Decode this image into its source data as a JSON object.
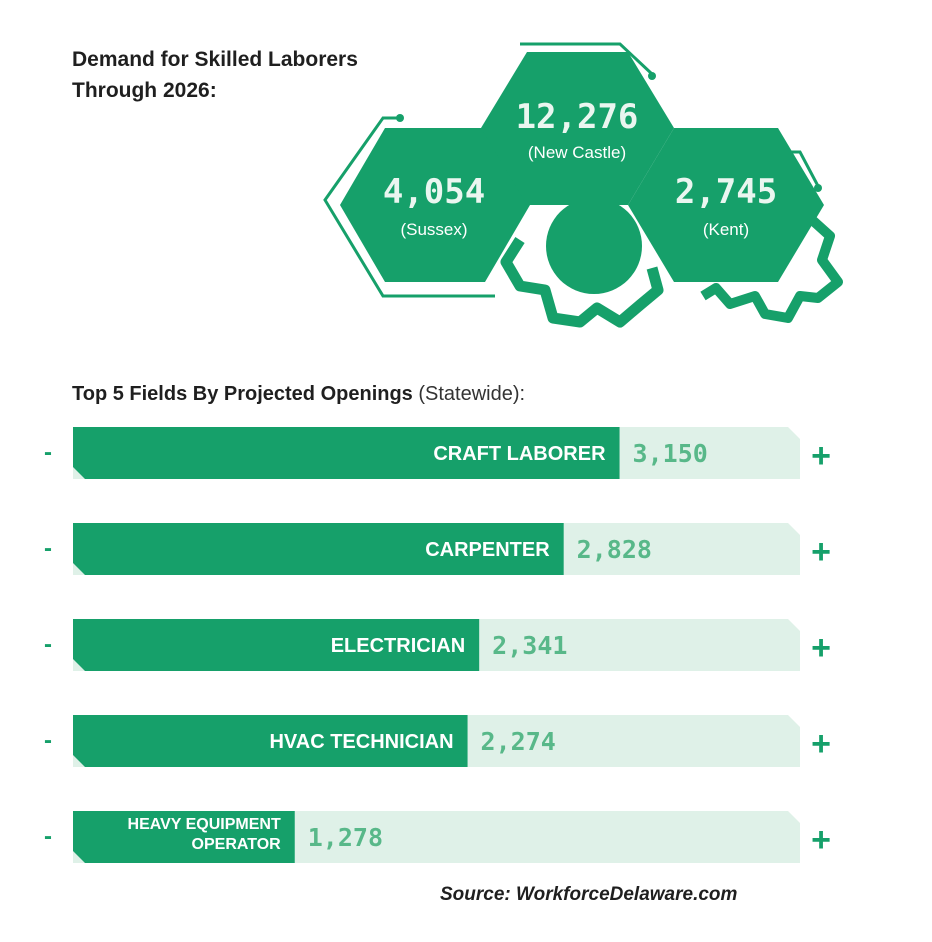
{
  "title_line1": "Demand for Skilled Laborers",
  "title_line2": "Through 2026:",
  "colors": {
    "green": "#16a06a",
    "light": "#dff1e8",
    "numberOnLight": "#58b889",
    "text": "#1f1f1f"
  },
  "regions": [
    {
      "value": "4,054",
      "name": "(Sussex)"
    },
    {
      "value": "12,276",
      "name": "(New Castle)"
    },
    {
      "value": "2,745",
      "name": "(Kent)"
    }
  ],
  "fields_title_bold": "Top 5 Fields By Projected Openings",
  "fields_title_light": "(Statewide):",
  "minus_label": "-",
  "plus_label": "+",
  "chart_data": {
    "type": "bar",
    "title": "Top 5 Fields By Projected Openings (Statewide):",
    "categories": [
      "CRAFT LABORER",
      "CARPENTER",
      "ELECTRICIAN",
      "HVAC TECHNICIAN",
      "HEAVY EQUIPMENT OPERATOR"
    ],
    "category_lines": [
      [
        "CRAFT LABORER"
      ],
      [
        "CARPENTER"
      ],
      [
        "ELECTRICIAN"
      ],
      [
        "HVAC TECHNICIAN"
      ],
      [
        "HEAVY EQUIPMENT",
        "OPERATOR"
      ]
    ],
    "values": [
      3150,
      2828,
      2341,
      2274,
      1278
    ],
    "value_labels": [
      "3,150",
      "2,828",
      "2,341",
      "2,274",
      "1,278"
    ],
    "xlim": [
      0,
      4190
    ]
  },
  "source": "Source: WorkforceDelaware.com"
}
